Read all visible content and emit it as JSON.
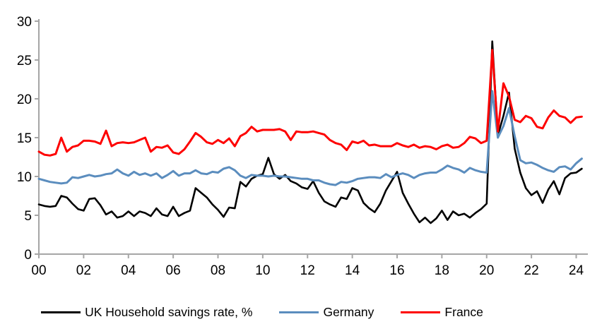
{
  "chart_data": {
    "type": "line",
    "title": "",
    "xlabel": "",
    "ylabel": "",
    "ylim": [
      0,
      30
    ],
    "y_ticks": [
      0,
      5,
      10,
      15,
      20,
      25,
      30
    ],
    "x_tick_labels": [
      "00",
      "02",
      "04",
      "06",
      "08",
      "10",
      "12",
      "14",
      "16",
      "18",
      "20",
      "22",
      "24"
    ],
    "x_unit": "years 2000-2024, quarterly",
    "grid": "off",
    "legend_position": "bottom",
    "axis_color": "#a6a6a6",
    "series": [
      {
        "name": "UK Household savings rate, %",
        "color": "#000000",
        "width": 2.6,
        "values": [
          6.4,
          6.2,
          6.1,
          6.2,
          7.5,
          7.3,
          6.5,
          5.8,
          5.6,
          7.1,
          7.2,
          6.3,
          5.1,
          5.5,
          4.7,
          4.9,
          5.5,
          4.9,
          5.5,
          5.3,
          4.9,
          5.9,
          5.1,
          4.9,
          6.1,
          4.9,
          5.3,
          5.6,
          8.5,
          7.9,
          7.3,
          6.4,
          5.7,
          4.8,
          6.0,
          5.9,
          9.3,
          8.7,
          9.7,
          10.1,
          10.3,
          12.4,
          10.3,
          9.7,
          10.2,
          9.4,
          9.1,
          8.6,
          8.4,
          9.4,
          7.9,
          6.8,
          6.4,
          6.1,
          7.3,
          7.1,
          8.5,
          8.2,
          6.6,
          5.9,
          5.4,
          6.5,
          8.2,
          9.4,
          10.6,
          7.9,
          6.5,
          5.2,
          4.1,
          4.7,
          4.0,
          4.6,
          5.6,
          4.4,
          5.5,
          5.0,
          5.2,
          4.7,
          5.3,
          5.8,
          6.5,
          27.4,
          15.3,
          17.8,
          20.8,
          13.6,
          10.5,
          8.5,
          7.6,
          8.1,
          6.6,
          8.3,
          9.4,
          7.7,
          9.8,
          10.4,
          10.5,
          11.0
        ]
      },
      {
        "name": "Germany",
        "color": "#5b8dbe",
        "width": 3,
        "values": [
          9.7,
          9.5,
          9.3,
          9.2,
          9.1,
          9.2,
          9.9,
          9.8,
          10.0,
          10.2,
          10.0,
          10.1,
          10.3,
          10.4,
          10.9,
          10.4,
          10.1,
          10.6,
          10.2,
          10.4,
          10.1,
          10.4,
          9.8,
          10.2,
          10.7,
          10.1,
          10.4,
          10.4,
          10.8,
          10.4,
          10.3,
          10.6,
          10.5,
          11.0,
          11.2,
          10.8,
          10.1,
          9.8,
          10.2,
          10.1,
          10.1,
          10.0,
          10.1,
          10.0,
          10.0,
          9.9,
          9.8,
          9.7,
          9.7,
          9.5,
          9.5,
          9.2,
          9.0,
          8.9,
          9.3,
          9.2,
          9.4,
          9.7,
          9.8,
          9.9,
          9.9,
          9.8,
          10.3,
          9.9,
          10.2,
          10.4,
          10.2,
          9.8,
          10.2,
          10.4,
          10.5,
          10.5,
          10.9,
          11.4,
          11.1,
          10.9,
          10.5,
          11.1,
          10.8,
          10.6,
          10.5,
          21.0,
          15.0,
          16.5,
          18.8,
          15.2,
          12.1,
          11.7,
          11.8,
          11.5,
          11.1,
          10.8,
          10.6,
          11.2,
          11.3,
          10.9,
          11.7,
          12.3
        ]
      },
      {
        "name": "France",
        "color": "#fe0000",
        "width": 3,
        "values": [
          13.2,
          12.8,
          12.7,
          12.9,
          15.0,
          13.2,
          13.8,
          14.0,
          14.6,
          14.6,
          14.5,
          14.2,
          15.9,
          13.9,
          14.3,
          14.4,
          14.3,
          14.4,
          14.7,
          15.0,
          13.2,
          13.8,
          13.7,
          14.0,
          13.1,
          12.9,
          13.5,
          14.5,
          15.6,
          15.1,
          14.4,
          14.2,
          14.7,
          14.3,
          14.9,
          13.9,
          15.2,
          15.6,
          16.4,
          15.8,
          16.0,
          16.0,
          16.0,
          16.1,
          15.8,
          14.7,
          15.8,
          15.7,
          15.7,
          15.8,
          15.6,
          15.4,
          14.7,
          14.3,
          14.1,
          13.4,
          14.5,
          14.3,
          14.6,
          14.0,
          14.1,
          13.9,
          13.9,
          13.9,
          14.3,
          14.0,
          13.8,
          14.1,
          13.7,
          13.9,
          13.8,
          13.5,
          13.9,
          14.1,
          13.7,
          13.8,
          14.3,
          15.1,
          14.9,
          14.3,
          14.6,
          26.3,
          15.8,
          22.0,
          20.3,
          17.3,
          17.0,
          17.8,
          17.5,
          16.4,
          16.2,
          17.6,
          18.5,
          17.8,
          17.6,
          16.9,
          17.6,
          17.7
        ]
      }
    ]
  },
  "legend": {
    "items": [
      "UK Household savings rate, %",
      "Germany",
      "France"
    ]
  }
}
